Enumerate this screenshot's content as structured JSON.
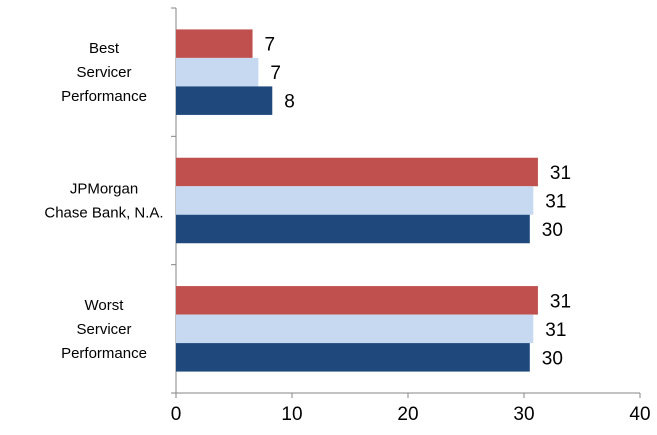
{
  "chart_data": {
    "type": "bar",
    "orientation": "horizontal",
    "categories": [
      {
        "lines": [
          "Best",
          "Servicer",
          "Performance"
        ]
      },
      {
        "lines": [
          "JPMorgan",
          "Chase Bank, N.A."
        ]
      },
      {
        "lines": [
          "Worst",
          "Servicer",
          "Performance"
        ]
      }
    ],
    "series": [
      {
        "color": "#c0504d",
        "values": [
          7,
          31,
          31
        ]
      },
      {
        "color": "#c6d9f1",
        "values": [
          7,
          31,
          31
        ]
      },
      {
        "color": "#1f497d",
        "values": [
          8,
          30,
          30
        ]
      }
    ],
    "bar_values": [
      [
        6.6,
        31.2,
        31.2
      ],
      [
        7.1,
        30.8,
        30.8
      ],
      [
        8.3,
        30.5,
        30.5
      ]
    ],
    "xlim": [
      0,
      40
    ],
    "xticks": [
      "0",
      "10",
      "20",
      "30",
      "40"
    ],
    "grid": false,
    "legend": "none",
    "title": "",
    "xlabel": "",
    "ylabel": ""
  }
}
